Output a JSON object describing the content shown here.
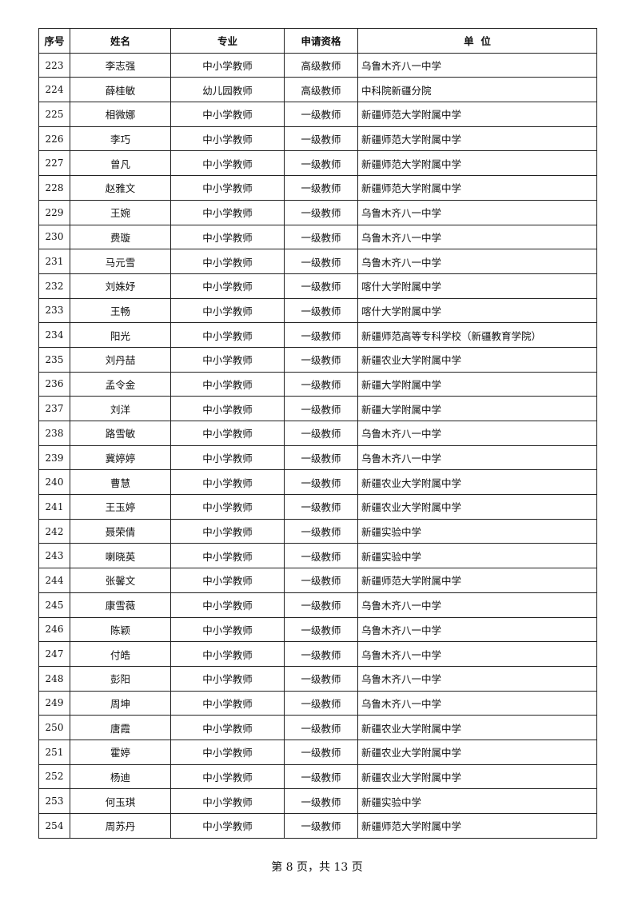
{
  "headers": [
    "序号",
    "姓名",
    "专业",
    "申请资格",
    "单  位"
  ],
  "rows": [
    [
      "223",
      "李志强",
      "中小学教师",
      "高级教师",
      "乌鲁木齐八一中学"
    ],
    [
      "224",
      "薛桂敏",
      "幼儿园教师",
      "高级教师",
      "中科院新疆分院"
    ],
    [
      "225",
      "相微娜",
      "中小学教师",
      "一级教师",
      "新疆师范大学附属中学"
    ],
    [
      "226",
      "李巧",
      "中小学教师",
      "一级教师",
      "新疆师范大学附属中学"
    ],
    [
      "227",
      "曾凡",
      "中小学教师",
      "一级教师",
      "新疆师范大学附属中学"
    ],
    [
      "228",
      "赵雅文",
      "中小学教师",
      "一级教师",
      "新疆师范大学附属中学"
    ],
    [
      "229",
      "王婉",
      "中小学教师",
      "一级教师",
      "乌鲁木齐八一中学"
    ],
    [
      "230",
      "费璇",
      "中小学教师",
      "一级教师",
      "乌鲁木齐八一中学"
    ],
    [
      "231",
      "马元雪",
      "中小学教师",
      "一级教师",
      "乌鲁木齐八一中学"
    ],
    [
      "232",
      "刘姝妤",
      "中小学教师",
      "一级教师",
      "喀什大学附属中学"
    ],
    [
      "233",
      "王畅",
      "中小学教师",
      "一级教师",
      "喀什大学附属中学"
    ],
    [
      "234",
      "阳光",
      "中小学教师",
      "一级教师",
      "新疆师范高等专科学校（新疆教育学院）"
    ],
    [
      "235",
      "刘丹喆",
      "中小学教师",
      "一级教师",
      "新疆农业大学附属中学"
    ],
    [
      "236",
      "孟令金",
      "中小学教师",
      "一级教师",
      "新疆大学附属中学"
    ],
    [
      "237",
      "刘洋",
      "中小学教师",
      "一级教师",
      "新疆大学附属中学"
    ],
    [
      "238",
      "路雪敏",
      "中小学教师",
      "一级教师",
      "乌鲁木齐八一中学"
    ],
    [
      "239",
      "冀婷婷",
      "中小学教师",
      "一级教师",
      "乌鲁木齐八一中学"
    ],
    [
      "240",
      "曹慧",
      "中小学教师",
      "一级教师",
      "新疆农业大学附属中学"
    ],
    [
      "241",
      "王玉婷",
      "中小学教师",
      "一级教师",
      "新疆农业大学附属中学"
    ],
    [
      "242",
      "聂荣倩",
      "中小学教师",
      "一级教师",
      "新疆实验中学"
    ],
    [
      "243",
      "喇晓英",
      "中小学教师",
      "一级教师",
      "新疆实验中学"
    ],
    [
      "244",
      "张馨文",
      "中小学教师",
      "一级教师",
      "新疆师范大学附属中学"
    ],
    [
      "245",
      "康雪薇",
      "中小学教师",
      "一级教师",
      "乌鲁木齐八一中学"
    ],
    [
      "246",
      "陈颖",
      "中小学教师",
      "一级教师",
      "乌鲁木齐八一中学"
    ],
    [
      "247",
      "付皓",
      "中小学教师",
      "一级教师",
      "乌鲁木齐八一中学"
    ],
    [
      "248",
      "彭阳",
      "中小学教师",
      "一级教师",
      "乌鲁木齐八一中学"
    ],
    [
      "249",
      "周坤",
      "中小学教师",
      "一级教师",
      "乌鲁木齐八一中学"
    ],
    [
      "250",
      "唐霞",
      "中小学教师",
      "一级教师",
      "新疆农业大学附属中学"
    ],
    [
      "251",
      "霍婷",
      "中小学教师",
      "一级教师",
      "新疆农业大学附属中学"
    ],
    [
      "252",
      "杨迪",
      "中小学教师",
      "一级教师",
      "新疆农业大学附属中学"
    ],
    [
      "253",
      "何玉琪",
      "中小学教师",
      "一级教师",
      "新疆实验中学"
    ],
    [
      "254",
      "周苏丹",
      "中小学教师",
      "一级教师",
      "新疆师范大学附属中学"
    ]
  ],
  "footer": "第 8 页，共 13 页"
}
